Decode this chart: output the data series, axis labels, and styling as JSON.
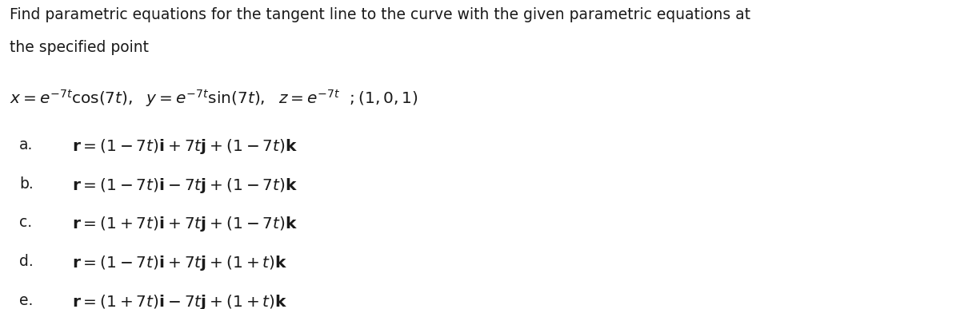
{
  "bg_color": "#ffffff",
  "title_line1": "Find parametric equations for the tangent line to the curve with the given parametric equations at",
  "title_line2": "the specified point",
  "equation_line": "$x = e^{-7t}\\cos(7t),\\ \\ y = e^{-7t}\\sin(7t),\\ \\ z = e^{-7t}\\ \\ ;(1,0,1)$",
  "options": [
    {
      "label": "a.",
      "text": "$\\mathbf{r} = (1-7t)\\mathbf{i} + 7t\\mathbf{j} + (1-7t)\\mathbf{k}$"
    },
    {
      "label": "b.",
      "text": "$\\mathbf{r} = (1-7t)\\mathbf{i} - 7t\\mathbf{j} + (1-7t)\\mathbf{k}$"
    },
    {
      "label": "c.",
      "text": "$\\mathbf{r} = (1+7t)\\mathbf{i} + 7t\\mathbf{j} + (1-7t)\\mathbf{k}$"
    },
    {
      "label": "d.",
      "text": "$\\mathbf{r} = (1-7t)\\mathbf{i} + 7t\\mathbf{j} + (1+t)\\mathbf{k}$"
    },
    {
      "label": "e.",
      "text": "$\\mathbf{r} = (1+7t)\\mathbf{i} - 7t\\mathbf{j} + (1+t)\\mathbf{k}$"
    }
  ],
  "title_fontsize": 13.5,
  "eq_fontsize": 14.5,
  "option_fontsize": 14.5,
  "label_fontsize": 13.5,
  "text_color": "#1a1a1a"
}
